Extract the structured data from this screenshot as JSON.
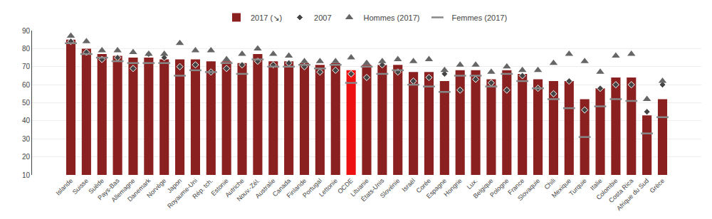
{
  "chart_data": {
    "type": "bar",
    "categories": [
      "Islande",
      "Suisse",
      "Suède",
      "Pays-Bas",
      "Allemagne",
      "Danemark",
      "Norvège",
      "Japon",
      "Royaume-Uni",
      "Rép. tch.",
      "Estonie",
      "Autriche",
      "Nouv.-Zél.",
      "Australie",
      "Canada",
      "Finlande",
      "Portugal",
      "Lettonie",
      "OCDE",
      "Lituanie",
      "États-Unis",
      "Slovénie",
      "Israël",
      "Corée",
      "Espagne",
      "Hongrie",
      "Lux.",
      "Belgique",
      "Pologne",
      "France",
      "Slovaquie",
      "Chili",
      "Mexique",
      "Turquie",
      "Italie",
      "Colombie",
      "Costa Rica",
      "Afrique du Sud",
      "Grèce"
    ],
    "series": [
      {
        "name": "2017 (↘)",
        "type": "bar",
        "color": "#8B2020",
        "colors": [
          "#8B2020",
          "#8B2020",
          "#8B2020",
          "#8B2020",
          "#8B2020",
          "#8B2020",
          "#8B2020",
          "#8B2020",
          "#8B2020",
          "#8B2020",
          "#8B2020",
          "#8B2020",
          "#8B2020",
          "#8B2020",
          "#8B2020",
          "#8B2020",
          "#8B2020",
          "#8B2020",
          "#EE1111",
          "#8B2020",
          "#8B2020",
          "#8B2020",
          "#8B2020",
          "#8B2020",
          "#8B2020",
          "#8B2020",
          "#8B2020",
          "#8B2020",
          "#8B2020",
          "#8B2020",
          "#8B2020",
          "#8B2020",
          "#8B2020",
          "#8B2020",
          "#8B2020",
          "#8B2020",
          "#8B2020",
          "#8B2020",
          "#8B2020"
        ],
        "values": [
          85,
          80,
          77,
          76,
          75,
          75,
          74,
          74,
          74,
          73,
          73,
          72,
          77,
          73,
          73,
          72,
          71,
          72,
          68,
          71,
          71,
          71,
          67,
          67,
          62,
          68,
          68,
          63,
          68,
          66,
          63,
          62,
          62,
          52,
          58,
          64,
          64,
          43,
          52
        ]
      },
      {
        "name": "2007",
        "type": "scatter",
        "marker": "diamond",
        "color": "#444444",
        "values": [
          84,
          78,
          74,
          75,
          69,
          77,
          75,
          70,
          71,
          67,
          69,
          71,
          73,
          71,
          72,
          70,
          67,
          68,
          66,
          64,
          71,
          67,
          62,
          64,
          66,
          57,
          63,
          61,
          57,
          65,
          58,
          55,
          62,
          46,
          58,
          60,
          60,
          45,
          60
        ]
      },
      {
        "name": "Hommes (2017)",
        "type": "scatter",
        "marker": "triangle-up",
        "color": "#666666",
        "values": [
          87,
          84,
          79,
          79,
          78,
          77,
          77,
          83,
          79,
          79,
          74,
          77,
          80,
          77,
          76,
          73,
          73,
          73,
          75,
          72,
          73,
          74,
          73,
          74,
          68,
          71,
          71,
          67,
          70,
          68,
          68,
          72,
          77,
          73,
          67,
          76,
          77,
          52,
          62
        ]
      },
      {
        "name": "Femmes (2017)",
        "type": "scatter",
        "marker": "line-ew",
        "color": "#888888",
        "values": [
          83,
          77,
          75,
          73,
          72,
          72,
          72,
          65,
          68,
          67,
          72,
          66,
          74,
          70,
          70,
          71,
          69,
          71,
          61,
          70,
          66,
          68,
          60,
          59,
          56,
          65,
          65,
          59,
          66,
          62,
          58,
          52,
          47,
          31,
          48,
          52,
          51,
          33,
          42
        ]
      }
    ],
    "ylim": [
      10,
      90
    ],
    "yticks": [
      10,
      20,
      30,
      40,
      50,
      60,
      70,
      80,
      90
    ],
    "grid": true,
    "legend": "top"
  }
}
